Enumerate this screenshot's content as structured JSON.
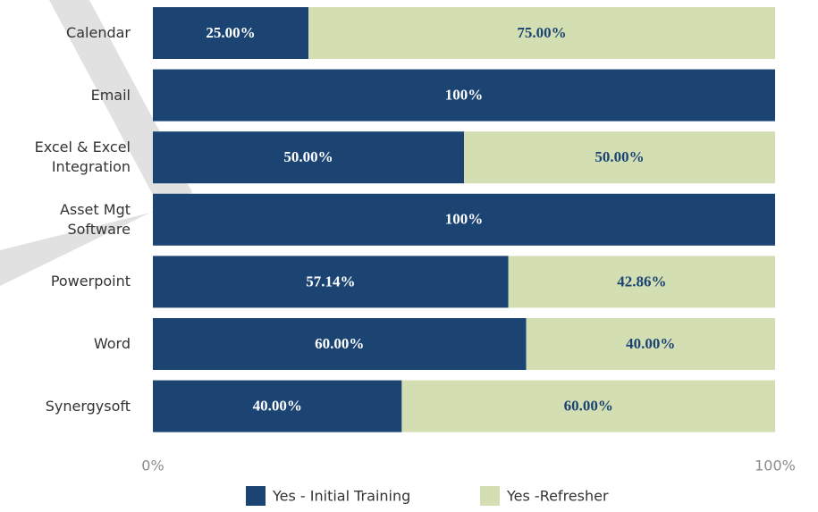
{
  "chart_data": {
    "type": "stacked_bar_horizontal",
    "categories": [
      "Calendar",
      "Email",
      "Excel & Excel Integration",
      "Asset Mgt Software",
      "Powerpoint",
      "Word",
      "Synergysoft"
    ],
    "series": [
      {
        "name": "Yes - Initial Training",
        "color": "#1b4473",
        "label_color": "#ffffff",
        "values": [
          25,
          100,
          50,
          100,
          57.14,
          60,
          40
        ],
        "value_labels": [
          "25.00%",
          "100%",
          "50.00%",
          "100%",
          "57.14%",
          "60.00%",
          "40.00%"
        ]
      },
      {
        "name": "Yes -Refresher",
        "color": "#d3dfb3",
        "label_color": "#1b4473",
        "values": [
          75,
          0,
          50,
          0,
          42.86,
          40,
          60
        ],
        "value_labels": [
          "75.00%",
          null,
          "50.00%",
          null,
          "42.86%",
          "40.00%",
          "60.00%"
        ]
      }
    ],
    "xlim": [
      0,
      100
    ],
    "xticks": [
      {
        "value": 0,
        "label": "0%"
      },
      {
        "value": 100,
        "label": "100%"
      }
    ],
    "legend": "bottom"
  }
}
